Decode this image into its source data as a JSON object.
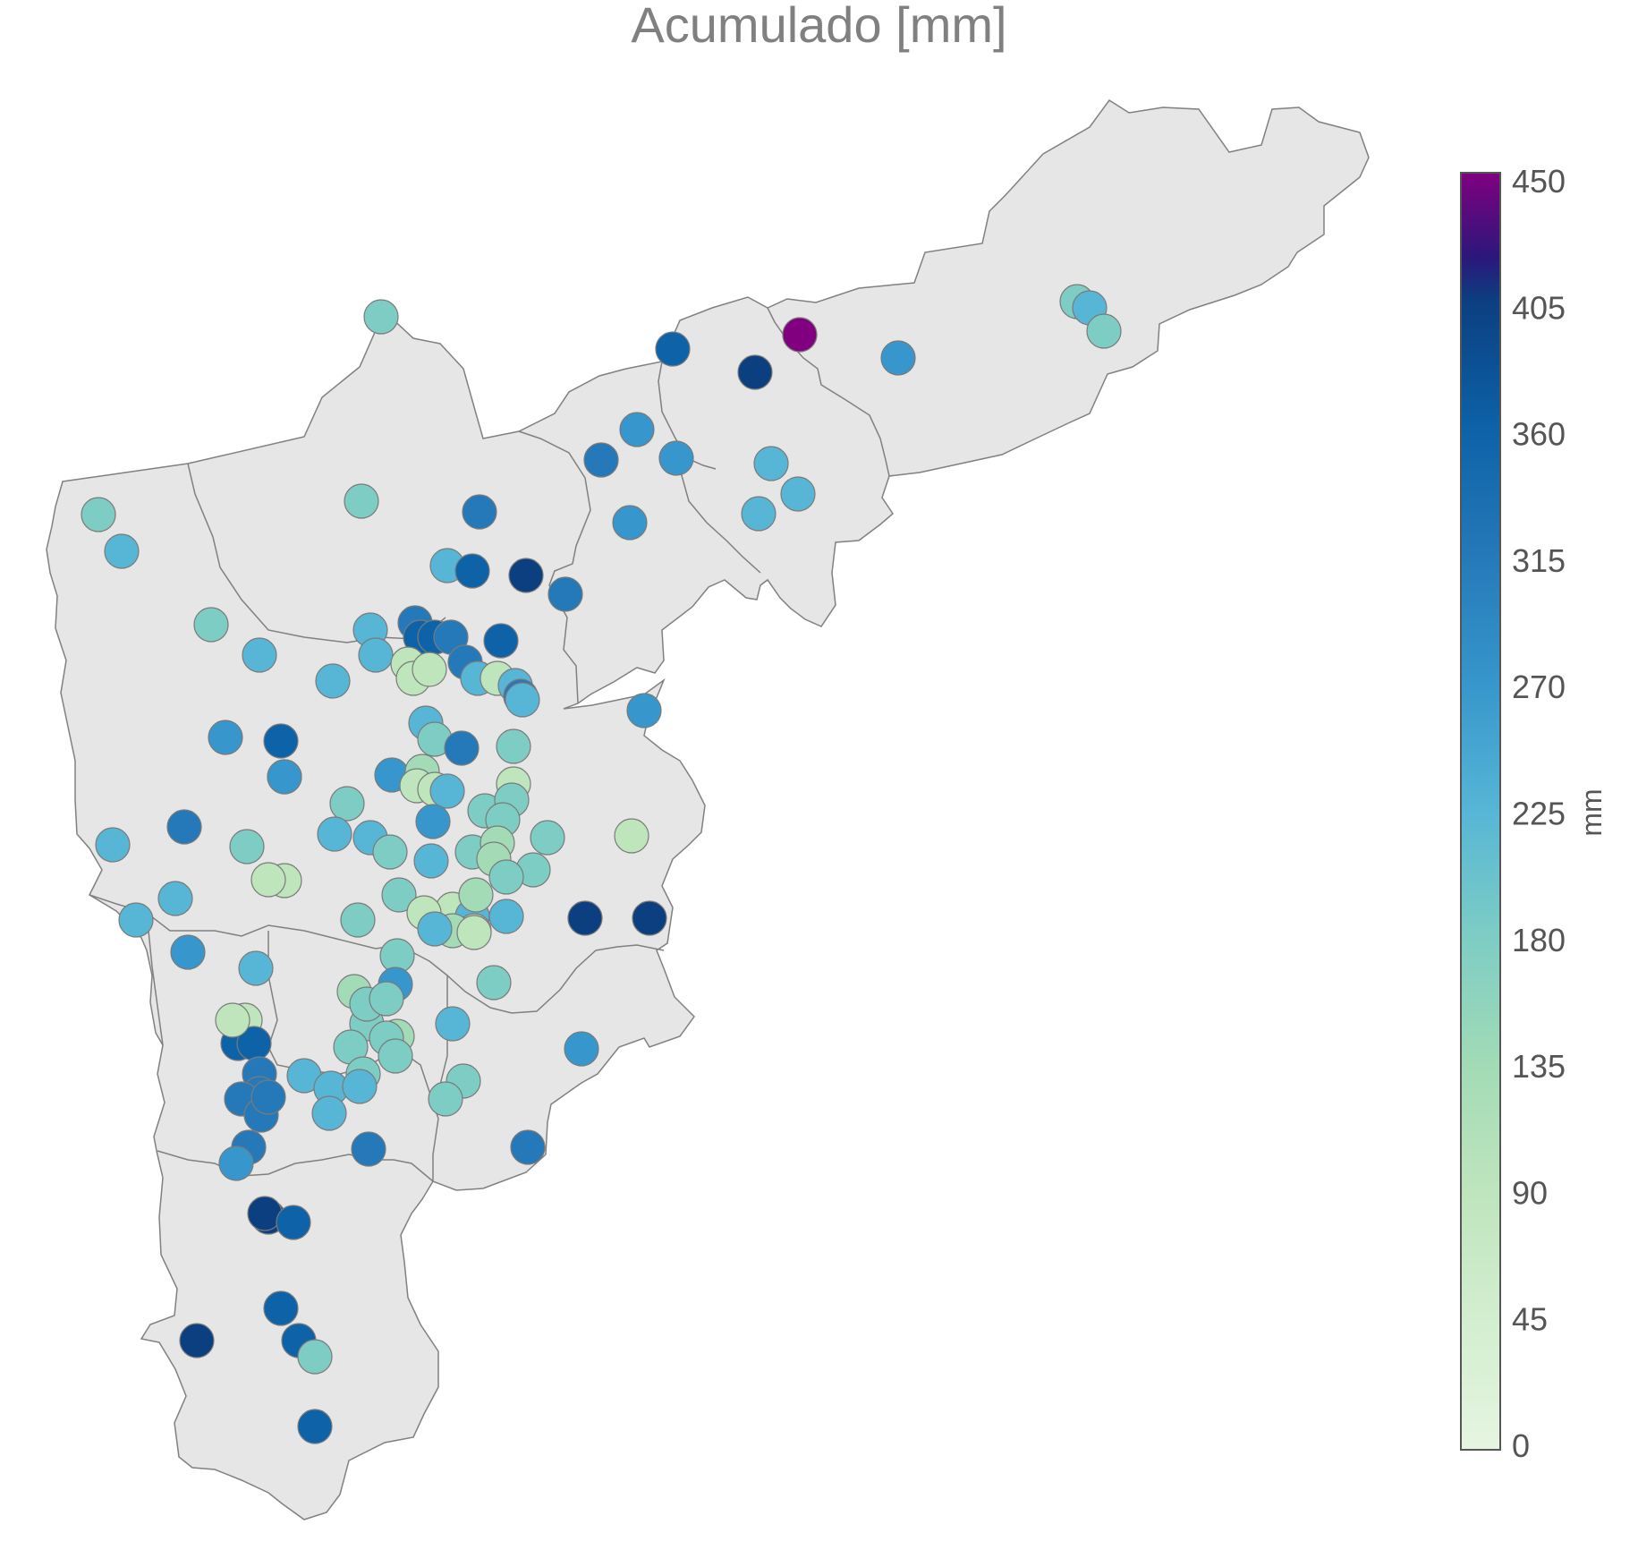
{
  "title": "Acumulado [mm]",
  "colorbar": {
    "title": "mm",
    "min": 0,
    "max": 450,
    "ticks": [
      "0",
      "45",
      "90",
      "135",
      "180",
      "225",
      "270",
      "315",
      "360",
      "405",
      "450"
    ],
    "stops": [
      {
        "v": 0,
        "c": "#e6f5e1"
      },
      {
        "v": 45,
        "c": "#d3eed0"
      },
      {
        "v": 90,
        "c": "#bfe5bd"
      },
      {
        "v": 135,
        "c": "#a2dbb6"
      },
      {
        "v": 180,
        "c": "#7ecdc4"
      },
      {
        "v": 225,
        "c": "#57b6d6"
      },
      {
        "v": 270,
        "c": "#3796cb"
      },
      {
        "v": 315,
        "c": "#2579b8"
      },
      {
        "v": 360,
        "c": "#0d62a8"
      },
      {
        "v": 405,
        "c": "#0c3f80"
      },
      {
        "v": 420,
        "c": "#2b177a"
      },
      {
        "v": 450,
        "c": "#800080"
      }
    ]
  },
  "colors": {
    "region_fill": "#e6e6e6",
    "region_stroke": "#808080",
    "marker_stroke": "#7a7a7a"
  }
}
